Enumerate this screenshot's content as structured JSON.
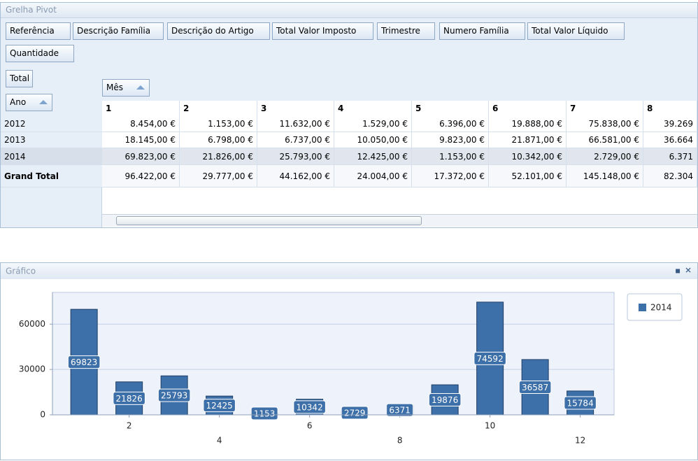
{
  "pivot": {
    "title": "Grelha Pivot",
    "filter_fields": [
      "Referência",
      "Descrição Família",
      "Descrição do Artigo",
      "Total Valor Imposto",
      "Trimestre",
      "Numero Família",
      "Total Valor Líquido",
      "Quantidade"
    ],
    "data_fields": [
      "Total"
    ],
    "row_fields": [
      "Ano"
    ],
    "column_fields": [
      "Mês"
    ],
    "columns": [
      "1",
      "2",
      "3",
      "4",
      "5",
      "6",
      "7",
      "8"
    ],
    "rows": [
      {
        "label": "2012",
        "cells": [
          "8.454,00 €",
          "1.153,00 €",
          "11.632,00 €",
          "1.529,00 €",
          "6.396,00 €",
          "19.888,00 €",
          "75.838,00 €",
          "39.269"
        ]
      },
      {
        "label": "2013",
        "cells": [
          "18.145,00 €",
          "6.798,00 €",
          "6.737,00 €",
          "10.050,00 €",
          "9.823,00 €",
          "21.871,00 €",
          "66.581,00 €",
          "36.664"
        ]
      },
      {
        "label": "2014",
        "cells": [
          "69.823,00 €",
          "21.826,00 €",
          "25.793,00 €",
          "12.425,00 €",
          "1.153,00 €",
          "10.342,00 €",
          "2.729,00 €",
          "6.371"
        ]
      },
      {
        "label": "Grand Total",
        "cells": [
          "96.422,00 €",
          "29.777,00 €",
          "44.162,00 €",
          "24.004,00 €",
          "17.372,00 €",
          "52.101,00 €",
          "145.148,00 €",
          "82.304"
        ]
      }
    ]
  },
  "chart_data": {
    "type": "bar",
    "title": "Gráfico",
    "x": [
      1,
      2,
      3,
      4,
      5,
      6,
      7,
      8,
      9,
      10,
      11,
      12
    ],
    "series": [
      {
        "name": "2014",
        "color": "#3d6fa8",
        "values": [
          69823,
          21826,
          25793,
          12425,
          1153,
          10342,
          2729,
          6371,
          19876,
          74592,
          36587,
          15784
        ]
      }
    ],
    "xlim": [
      0.3,
      12.75
    ],
    "xticks": [
      2,
      4,
      6,
      8,
      10,
      12
    ],
    "ylim": [
      0,
      81000
    ],
    "yticks": [
      0,
      30000,
      60000
    ],
    "grid": true,
    "legend": "right"
  }
}
